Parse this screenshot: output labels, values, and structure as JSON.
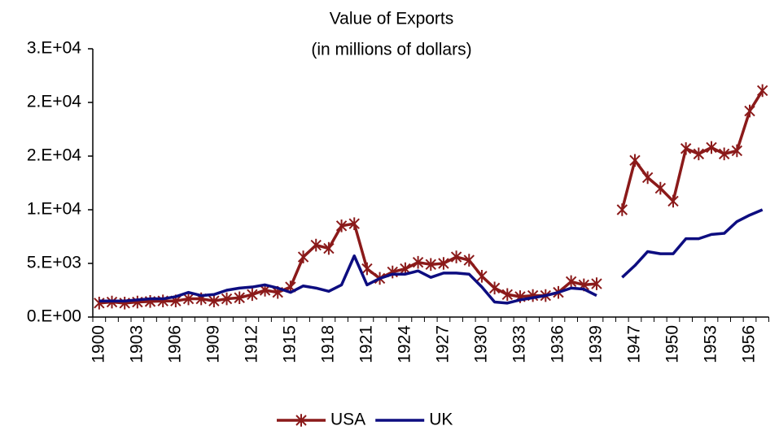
{
  "chart_data": {
    "type": "line",
    "title": "Value of Exports",
    "subtitle": "(in millions of dollars)",
    "categories": [
      "1900",
      null,
      null,
      "1903",
      null,
      null,
      "1906",
      null,
      null,
      "1909",
      null,
      null,
      "1912",
      null,
      null,
      "1915",
      null,
      null,
      "1918",
      null,
      null,
      "1921",
      null,
      null,
      "1924",
      null,
      null,
      "1927",
      null,
      null,
      "1930",
      null,
      null,
      "1933",
      null,
      null,
      "1936",
      null,
      null,
      "1939",
      null,
      null,
      "1947",
      null,
      null,
      "1950",
      null,
      null,
      "1953",
      null,
      null,
      "1956",
      null
    ],
    "series": [
      {
        "name": "USA",
        "color": "#8b1a1a",
        "marker": "asterisk",
        "values": [
          1300,
          1400,
          1300,
          1400,
          1450,
          1500,
          1500,
          1700,
          1700,
          1500,
          1700,
          1800,
          2100,
          2500,
          2300,
          2800,
          5600,
          6700,
          6400,
          8500,
          8700,
          4500,
          3600,
          4200,
          4500,
          5100,
          4900,
          5000,
          5600,
          5300,
          3800,
          2700,
          2100,
          1900,
          2000,
          2000,
          2300,
          3300,
          3000,
          3100,
          null,
          10000,
          14600,
          13000,
          12000,
          10800,
          15700,
          15200,
          15800,
          15200,
          15500,
          19200,
          21100
        ]
      },
      {
        "name": "UK",
        "color": "#0d0d80",
        "values": [
          1500,
          1500,
          1500,
          1600,
          1700,
          1700,
          1900,
          2300,
          2000,
          2100,
          2500,
          2700,
          2800,
          3000,
          2700,
          2300,
          2900,
          2700,
          2400,
          3000,
          5700,
          3000,
          3600,
          4000,
          4000,
          4300,
          3700,
          4100,
          4100,
          4000,
          2800,
          1400,
          1300,
          1600,
          1800,
          2000,
          2300,
          2700,
          2600,
          2000,
          null,
          3700,
          4800,
          6100,
          5900,
          5900,
          7300,
          7300,
          7700,
          7800,
          8900,
          9500,
          10000
        ]
      }
    ],
    "ylim": [
      0,
      25000
    ],
    "yticks": [
      {
        "value": 0,
        "label": "0.E+00"
      },
      {
        "value": 5000,
        "label": "5.E+03"
      },
      {
        "value": 10000,
        "label": "1.E+04"
      },
      {
        "value": 15000,
        "label": "2.E+04"
      },
      {
        "value": 20000,
        "label": "2.E+04"
      },
      {
        "value": 25000,
        "label": "3.E+04"
      }
    ],
    "grid": false,
    "legend": "bottom"
  }
}
